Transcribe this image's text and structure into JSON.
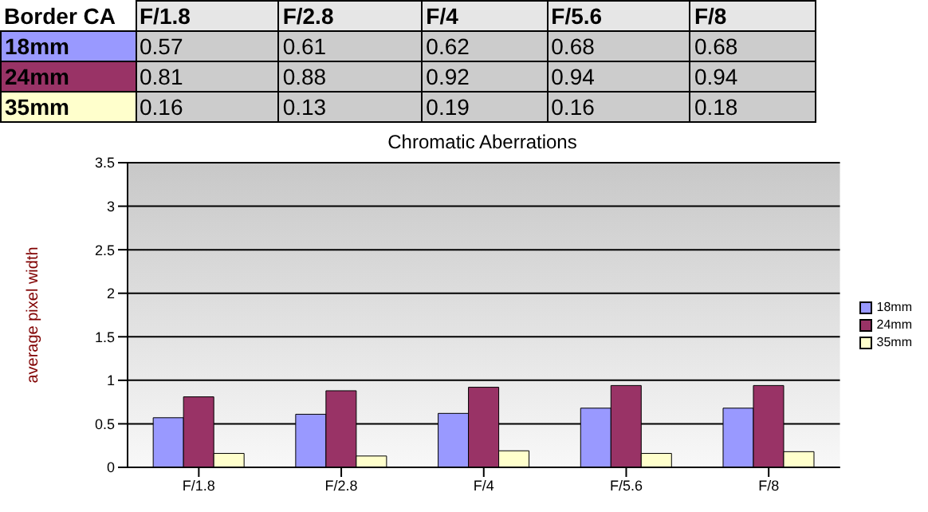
{
  "chart_data": {
    "type": "bar",
    "title": "Chromatic Aberrations",
    "ylabel": "average pixel width",
    "annotations": [
      "Border CA"
    ],
    "categories": [
      "F/1.8",
      "F/2.8",
      "F/4",
      "F/5.6",
      "F/8"
    ],
    "series": [
      {
        "name": "18mm",
        "color": "#9999ff",
        "values": [
          0.57,
          0.61,
          0.62,
          0.68,
          0.68
        ]
      },
      {
        "name": "24mm",
        "color": "#993366",
        "values": [
          0.81,
          0.88,
          0.92,
          0.94,
          0.94
        ]
      },
      {
        "name": "35mm",
        "color": "#ffffcc",
        "values": [
          0.16,
          0.13,
          0.19,
          0.16,
          0.18
        ]
      }
    ],
    "ylim": [
      0,
      3.5
    ],
    "yticks": [
      0,
      0.5,
      1,
      1.5,
      2,
      2.5,
      3,
      3.5
    ],
    "grid": "y",
    "legend": "right",
    "data_labels": true
  }
}
